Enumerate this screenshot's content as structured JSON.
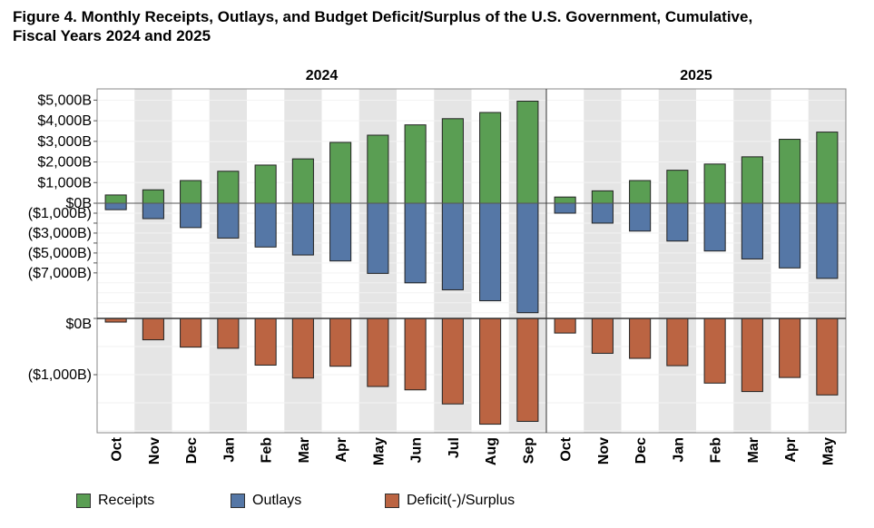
{
  "title": "Figure 4. Monthly Receipts, Outlays, and Budget Deficit/Surplus of the U.S. Government, Cumulative,\nFiscal Years 2024 and 2025",
  "colors": {
    "receipts": "#5a9e53",
    "outlays": "#5577a6",
    "deficit": "#bb6442",
    "band": "#e5e5e5",
    "axis": "#888888"
  },
  "chart_data": {
    "type": "bar",
    "title": "Figure 4. Monthly Receipts, Outlays, and Budget Deficit/Surplus of the U.S. Government, Cumulative, Fiscal Years 2024 and 2025",
    "panels": [
      {
        "year": "2024",
        "months": [
          "Oct",
          "Nov",
          "Dec",
          "Jan",
          "Feb",
          "Mar",
          "Apr",
          "May",
          "Jun",
          "Jul",
          "Aug",
          "Sep"
        ],
        "receipts": [
          400,
          650,
          1100,
          1550,
          1850,
          2150,
          2950,
          3300,
          3800,
          4100,
          4400,
          4950
        ],
        "outlays": [
          650,
          1550,
          2450,
          3500,
          4400,
          5200,
          5800,
          7050,
          8000,
          8700,
          9800,
          11000
        ],
        "deficit": [
          -65,
          -380,
          -510,
          -530,
          -830,
          -1060,
          -850,
          -1210,
          -1270,
          -1520,
          -1880,
          -1830
        ]
      },
      {
        "year": "2025",
        "months": [
          "Oct",
          "Nov",
          "Dec",
          "Jan",
          "Feb",
          "Mar",
          "Apr",
          "May"
        ],
        "receipts": [
          300,
          600,
          1100,
          1600,
          1900,
          2250,
          3100,
          3450
        ],
        "outlays": [
          1000,
          2000,
          2800,
          3800,
          4800,
          5600,
          6500,
          7550
        ],
        "deficit": [
          -260,
          -620,
          -710,
          -840,
          -1150,
          -1300,
          -1050,
          -1360
        ]
      }
    ],
    "top_axis": {
      "ticks": [
        5000,
        4000,
        3000,
        2000,
        1000,
        0,
        -1000,
        -3000,
        -5000,
        -7000
      ],
      "tick_labels": [
        "$5,000B",
        "$4,000B",
        "$3,000B",
        "$2,000B",
        "$1,000B",
        "$0B",
        "($1,000B)",
        "($3,000B)",
        "($5,000B)",
        "($7,000B)"
      ]
    },
    "bottom_axis": {
      "ticks": [
        0,
        -1000
      ],
      "tick_labels": [
        "$0B",
        "($1,000B)"
      ]
    },
    "legend": [
      "Receipts",
      "Outlays",
      "Deficit(-)/Surplus"
    ],
    "legend_position": "bottom"
  }
}
